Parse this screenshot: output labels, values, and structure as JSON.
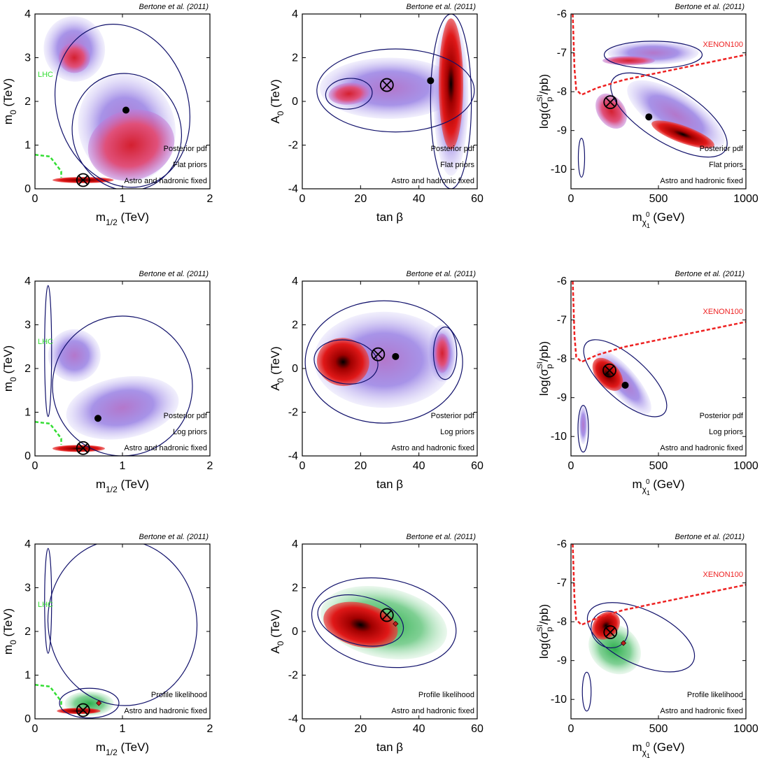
{
  "figure": {
    "credit": "Bertone et al. (2011)"
  },
  "chart_data": [
    {
      "type": "heatmap",
      "row": 0,
      "col": 0,
      "xlabel": "m",
      "xlabel_sub": "1/2",
      "xlabel_unit": " (TeV)",
      "ylabel": "m",
      "ylabel_sub": "0",
      "ylabel_unit": " (TeV)",
      "xlim": [
        0,
        2
      ],
      "ylim": [
        0,
        4
      ],
      "xticks": [
        0,
        1,
        2
      ],
      "yticks": [
        0,
        1,
        2,
        3,
        4
      ],
      "annotations": [
        "Posterior pdf",
        "Flat priors",
        "Astro and hadronic fixed"
      ],
      "colormap": "purple-red",
      "limit_label": "LHC",
      "limit_color": "#33dd33",
      "limit_curve": [
        [
          0,
          0.78
        ],
        [
          0.17,
          0.74
        ],
        [
          0.3,
          0.4
        ],
        [
          0.3,
          0.26
        ]
      ],
      "best_fit": [
        0.55,
        0.2
      ],
      "posterior_mean": [
        1.04,
        1.8
      ]
    },
    {
      "type": "heatmap",
      "row": 0,
      "col": 1,
      "xlabel": "tan β",
      "ylabel": "A",
      "ylabel_sub": "0",
      "ylabel_unit": " (TeV)",
      "xlim": [
        0,
        60
      ],
      "ylim": [
        -4,
        4
      ],
      "xticks": [
        0,
        20,
        40,
        60
      ],
      "yticks": [
        -4,
        -2,
        0,
        2,
        4
      ],
      "annotations": [
        "Posterior pdf",
        "Flat priors",
        "Astro and hadronic fixed"
      ],
      "colormap": "purple-red",
      "best_fit": [
        29,
        0.75
      ],
      "posterior_mean": [
        44,
        0.95
      ]
    },
    {
      "type": "heatmap",
      "row": 0,
      "col": 2,
      "xlabel": "m",
      "xlabel_sub": "χ",
      "xlabel_subsub": "1",
      "xlabel_sup": "0",
      "xlabel_unit": " (GeV)",
      "ylabel": "log(σ",
      "ylabel_sub": "p",
      "ylabel_sup": "SI",
      "ylabel_unit": "/pb)",
      "xlim": [
        0,
        1000
      ],
      "ylim": [
        -10.5,
        -6
      ],
      "xticks": [
        0,
        500,
        1000
      ],
      "yticks": [
        -10,
        -9,
        -8,
        -7,
        -6
      ],
      "annotations": [
        "Posterior pdf",
        "Flat priors",
        "Astro and hadronic fixed"
      ],
      "colormap": "purple-red",
      "limit_label": "XENON100",
      "limit_color": "#ee2222",
      "limit_curve": [
        [
          10,
          -6
        ],
        [
          20,
          -7.4
        ],
        [
          30,
          -7.95
        ],
        [
          60,
          -8.08
        ],
        [
          150,
          -7.9
        ],
        [
          300,
          -7.7
        ],
        [
          600,
          -7.42
        ],
        [
          1000,
          -7.05
        ]
      ],
      "best_fit": [
        225,
        -8.27
      ],
      "posterior_mean": [
        445,
        -8.65
      ]
    },
    {
      "type": "heatmap",
      "row": 1,
      "col": 0,
      "xlabel": "m",
      "xlabel_sub": "1/2",
      "xlabel_unit": " (TeV)",
      "ylabel": "m",
      "ylabel_sub": "0",
      "ylabel_unit": " (TeV)",
      "xlim": [
        0,
        2
      ],
      "ylim": [
        0,
        4
      ],
      "xticks": [
        0,
        1,
        2
      ],
      "yticks": [
        0,
        1,
        2,
        3,
        4
      ],
      "annotations": [
        "Posterior pdf",
        "Log priors",
        "Astro and hadronic fixed"
      ],
      "colormap": "purple-red",
      "limit_label": "LHC",
      "limit_color": "#33dd33",
      "limit_curve": [
        [
          0,
          0.78
        ],
        [
          0.17,
          0.74
        ],
        [
          0.3,
          0.4
        ],
        [
          0.3,
          0.26
        ]
      ],
      "best_fit": [
        0.55,
        0.18
      ],
      "posterior_mean": [
        0.72,
        0.86
      ]
    },
    {
      "type": "heatmap",
      "row": 1,
      "col": 1,
      "xlabel": "tan β",
      "ylabel": "A",
      "ylabel_sub": "0",
      "ylabel_unit": " (TeV)",
      "xlim": [
        0,
        60
      ],
      "ylim": [
        -4,
        4
      ],
      "xticks": [
        0,
        20,
        40,
        60
      ],
      "yticks": [
        -4,
        -2,
        0,
        2,
        4
      ],
      "annotations": [
        "Posterior pdf",
        "Log priors",
        "Astro and hadronic fixed"
      ],
      "colormap": "purple-red",
      "best_fit": [
        26,
        0.65
      ],
      "posterior_mean": [
        32,
        0.55
      ]
    },
    {
      "type": "heatmap",
      "row": 1,
      "col": 2,
      "xlabel": "m",
      "xlabel_sub": "χ",
      "xlabel_subsub": "1",
      "xlabel_sup": "0",
      "xlabel_unit": " (GeV)",
      "ylabel": "log(σ",
      "ylabel_sub": "p",
      "ylabel_sup": "SI",
      "ylabel_unit": "/pb)",
      "xlim": [
        0,
        1000
      ],
      "ylim": [
        -10.5,
        -6
      ],
      "xticks": [
        0,
        500,
        1000
      ],
      "yticks": [
        -10,
        -9,
        -8,
        -7,
        -6
      ],
      "annotations": [
        "Posterior pdf",
        "Log priors",
        "Astro and hadronic fixed"
      ],
      "colormap": "purple-red",
      "limit_label": "XENON100",
      "limit_color": "#ee2222",
      "limit_curve": [
        [
          10,
          -6
        ],
        [
          20,
          -7.4
        ],
        [
          30,
          -7.95
        ],
        [
          60,
          -8.08
        ],
        [
          150,
          -7.9
        ],
        [
          300,
          -7.7
        ],
        [
          600,
          -7.42
        ],
        [
          1000,
          -7.05
        ]
      ],
      "best_fit": [
        220,
        -8.3
      ],
      "posterior_mean": [
        310,
        -8.68
      ]
    },
    {
      "type": "heatmap",
      "row": 2,
      "col": 0,
      "xlabel": "m",
      "xlabel_sub": "1/2",
      "xlabel_unit": " (TeV)",
      "ylabel": "m",
      "ylabel_sub": "0",
      "ylabel_unit": " (TeV)",
      "xlim": [
        0,
        2
      ],
      "ylim": [
        0,
        4
      ],
      "xticks": [
        0,
        1,
        2
      ],
      "yticks": [
        0,
        1,
        2,
        3,
        4
      ],
      "annotations": [
        "Profile likelihood",
        "Astro and hadronic fixed"
      ],
      "colormap": "green-red",
      "limit_label": "LHC",
      "limit_color": "#33dd33",
      "limit_curve": [
        [
          0,
          0.78
        ],
        [
          0.17,
          0.74
        ],
        [
          0.3,
          0.4
        ],
        [
          0.3,
          0.26
        ]
      ],
      "best_fit": [
        0.55,
        0.2
      ],
      "posterior_mean": [
        0.73,
        0.36
      ]
    },
    {
      "type": "heatmap",
      "row": 2,
      "col": 1,
      "xlabel": "tan β",
      "ylabel": "A",
      "ylabel_sub": "0",
      "ylabel_unit": " (TeV)",
      "xlim": [
        0,
        60
      ],
      "ylim": [
        -4,
        4
      ],
      "xticks": [
        0,
        20,
        40,
        60
      ],
      "yticks": [
        -4,
        -2,
        0,
        2,
        4
      ],
      "annotations": [
        "Profile likelihood",
        "Astro and hadronic fixed"
      ],
      "colormap": "green-red",
      "best_fit": [
        29,
        0.75
      ],
      "posterior_mean": [
        32,
        0.35
      ]
    },
    {
      "type": "heatmap",
      "row": 2,
      "col": 2,
      "xlabel": "m",
      "xlabel_sub": "χ",
      "xlabel_subsub": "1",
      "xlabel_sup": "0",
      "xlabel_unit": " (GeV)",
      "ylabel": "log(σ",
      "ylabel_sub": "p",
      "ylabel_sup": "SI",
      "ylabel_unit": "/pb)",
      "xlim": [
        0,
        1000
      ],
      "ylim": [
        -10.5,
        -6
      ],
      "xticks": [
        0,
        500,
        1000
      ],
      "yticks": [
        -10,
        -9,
        -8,
        -7,
        -6
      ],
      "annotations": [
        "Profile likelihood",
        "Astro and hadronic fixed"
      ],
      "colormap": "green-red",
      "limit_label": "XENON100",
      "limit_color": "#ee2222",
      "limit_curve": [
        [
          10,
          -6
        ],
        [
          20,
          -7.4
        ],
        [
          30,
          -7.95
        ],
        [
          60,
          -8.08
        ],
        [
          150,
          -7.9
        ],
        [
          300,
          -7.7
        ],
        [
          600,
          -7.42
        ],
        [
          1000,
          -7.05
        ]
      ],
      "best_fit": [
        225,
        -8.27
      ],
      "posterior_mean": [
        300,
        -8.55
      ]
    }
  ]
}
